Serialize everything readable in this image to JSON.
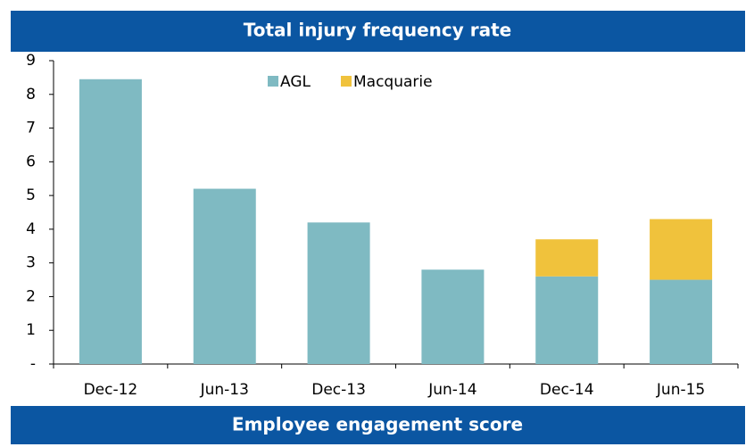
{
  "chart_data": {
    "type": "bar",
    "stacked": true,
    "title": "Total injury frequency rate",
    "footer": "Employee engagement score",
    "categories": [
      "Dec-12",
      "Jun-13",
      "Dec-13",
      "Jun-14",
      "Dec-14",
      "Jun-15"
    ],
    "series": [
      {
        "name": "AGL",
        "color": "#7fbac2",
        "values": [
          8.45,
          5.2,
          4.2,
          2.8,
          2.6,
          2.5
        ]
      },
      {
        "name": "Macquarie",
        "color": "#f0c23c",
        "values": [
          null,
          null,
          null,
          null,
          1.1,
          1.8
        ]
      }
    ],
    "ylim": [
      0,
      9
    ],
    "yticks": [
      {
        "value": 0,
        "label": "-"
      },
      1,
      2,
      3,
      4,
      5,
      6,
      7,
      8,
      9
    ],
    "legend": "top",
    "grid": false
  }
}
